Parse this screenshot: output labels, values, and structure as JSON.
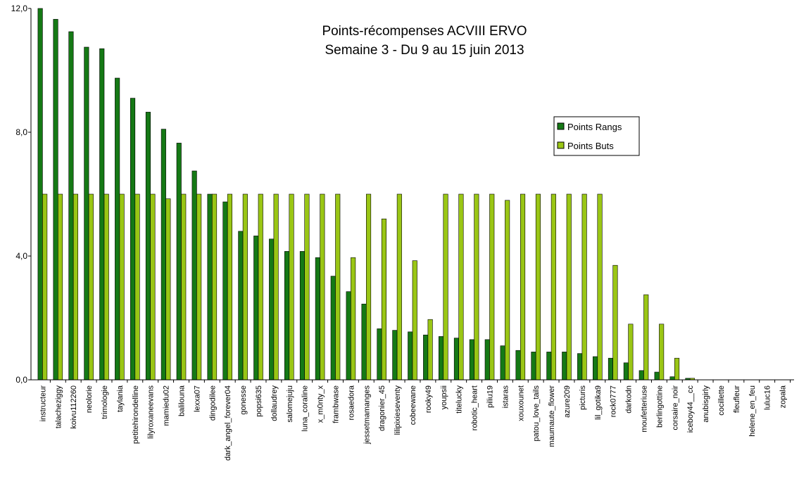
{
  "chart_data": {
    "type": "bar",
    "title": [
      "Points-récompenses ACVIII ERVO",
      "Semaine 3 - Du 9 au 15 juin 2013"
    ],
    "xlabel": "",
    "ylabel": "",
    "ylim": [
      0,
      12
    ],
    "yticks": [
      "0,0",
      "4,0",
      "8,0",
      "12,0"
    ],
    "grid": false,
    "legend_position": "right",
    "categories": [
      "instructeur",
      "talacheziggy",
      "koivu112260",
      "neolorie",
      "trimologie",
      "taylania",
      "petitehirondelline",
      "lilyroxaneevans",
      "mamiedu02",
      "balilouna",
      "lexxa07",
      "dingodilee",
      "dark_angel_forever04",
      "gonesse",
      "popsi635",
      "dollaudrey",
      "salomejuju",
      "luna_coraline",
      "x_m0nty_x",
      "frambwase",
      "rosaedora",
      "jessetmamanges",
      "dragonier_45",
      "lilipixieseventy",
      "cobeewane",
      "rooky49",
      "youpsii",
      "titelucky",
      "robotic_heart",
      "piliu19",
      "istaras",
      "xouxounet",
      "patou_love_tails",
      "maumaute_flower",
      "azure209",
      "picturis",
      "lil_gotika9",
      "rock0777",
      "darkodn",
      "moufetteriuse",
      "berlingottine",
      "corsaire_noir",
      "iceboy44__cc",
      "anubisgirly",
      "cocillette",
      "fleufleur",
      "helene_en_feu",
      "luluc16",
      "zopala"
    ],
    "series": [
      {
        "name": "Points Rangs",
        "color": "#157915",
        "values": [
          12.0,
          11.65,
          11.25,
          10.75,
          10.7,
          9.75,
          9.1,
          8.65,
          8.1,
          7.65,
          6.75,
          6.0,
          5.75,
          4.8,
          4.65,
          4.55,
          4.15,
          4.15,
          3.95,
          3.35,
          2.85,
          2.45,
          1.65,
          1.6,
          1.55,
          1.45,
          1.4,
          1.35,
          1.3,
          1.3,
          1.1,
          0.95,
          0.9,
          0.9,
          0.9,
          0.85,
          0.75,
          0.7,
          0.55,
          0.3,
          0.25,
          0.1,
          0.05,
          0,
          0,
          0,
          0,
          0,
          0
        ]
      },
      {
        "name": "Points Buts",
        "color": "#9ac615",
        "values": [
          6.0,
          6.0,
          6.0,
          6.0,
          6.0,
          6.0,
          6.0,
          6.0,
          5.85,
          6.0,
          6.0,
          6.0,
          6.0,
          6.0,
          6.0,
          6.0,
          6.0,
          6.0,
          6.0,
          6.0,
          3.95,
          6.0,
          5.2,
          6.0,
          3.85,
          1.95,
          6.0,
          6.0,
          6.0,
          6.0,
          5.8,
          6.0,
          6.0,
          6.0,
          6.0,
          6.0,
          6.0,
          3.7,
          1.8,
          2.75,
          1.8,
          0.7,
          0.05,
          0,
          0,
          0,
          0,
          0,
          0
        ]
      }
    ]
  }
}
